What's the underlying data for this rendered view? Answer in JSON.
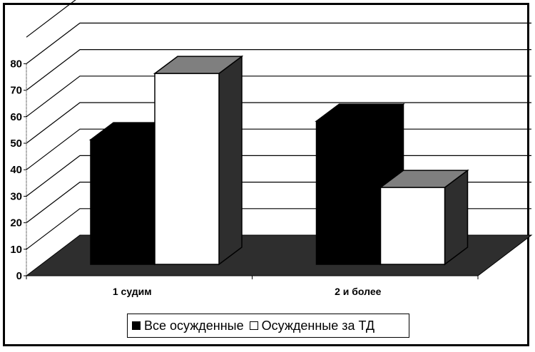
{
  "chart_data": {
    "type": "bar",
    "style": "3d-clustered",
    "title": "",
    "xlabel": "",
    "ylabel": "",
    "categories": [
      "1 судим",
      "2 и более"
    ],
    "series": [
      {
        "name": "Все осужденные",
        "values": [
          47,
          54
        ],
        "color": "#000000"
      },
      {
        "name": "Осужденные за ТД",
        "values": [
          72,
          29
        ],
        "color": "#ffffff"
      }
    ],
    "ylim": [
      0,
      80
    ],
    "yticks": [
      0,
      10,
      20,
      30,
      40,
      50,
      60,
      70,
      80
    ],
    "grid": true,
    "legend_position": "bottom"
  },
  "colors": {
    "floor": "#2e2e2e",
    "side": "#2e2e2e",
    "top_white": "#7f7f7f",
    "gridline": "#000000"
  },
  "legend": {
    "items": [
      {
        "label": "Все осужденные"
      },
      {
        "label": "Осужденные за ТД"
      }
    ]
  }
}
